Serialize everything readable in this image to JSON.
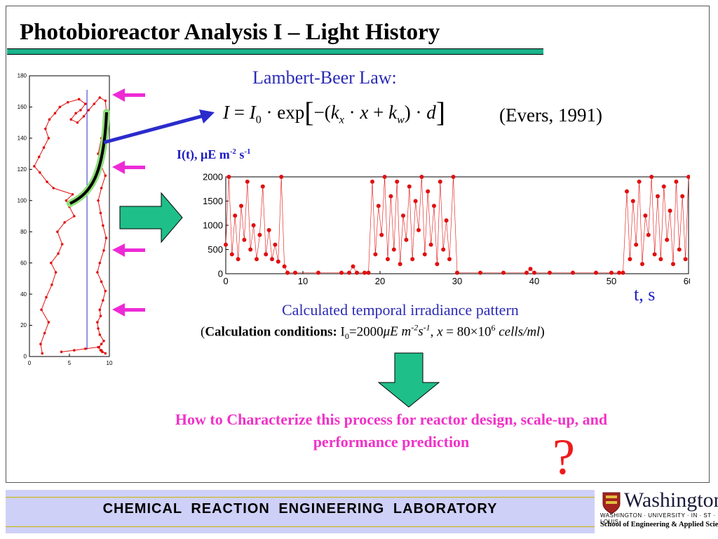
{
  "slide": {
    "title": "Photobioreactor Analysis I – Light History",
    "lambert_beer_label": "Lambert-Beer Law:",
    "citation": "(Evers, 1991)",
    "irradiance_unit_label": "I(t), μE m-2 s-1",
    "time_axis_label": "t, s",
    "caption": "Calculated temporal irradiance pattern",
    "conditions": {
      "bold_prefix": "Calculation conditions:",
      "text": "I0=2000μE m-2s-1, x = 80×106 cells/ml"
    },
    "question": "How to Characterize this process for reactor design, scale-up, and performance prediction",
    "question_mark": "?",
    "colors": {
      "title_bar": "#19b38a",
      "caption_blue": "#2b2bb5",
      "question_pink": "#f032c8",
      "qmark_red": "#ee1b1b",
      "trajectory_red": "#e01010",
      "arrow_magenta": "#ee2ad6",
      "footer_bg": "#cfd0f8"
    }
  },
  "footer": {
    "lab_name": "CHEMICAL REACTION ENGINEERING LABORATORY",
    "university": "Washington",
    "university_sub": "WASHINGTON · UNIVERSITY · IN · ST · LOUIS",
    "school": "School of Engineering & Applied Science"
  },
  "chart_data": [
    {
      "type": "line",
      "title": "",
      "xlabel": "",
      "ylabel": "",
      "xlim": [
        0,
        10
      ],
      "ylim": [
        0,
        180
      ],
      "x_ticks": [
        "0",
        "5",
        "10"
      ],
      "y_ticks": [
        "0",
        "20",
        "40",
        "60",
        "80",
        "100",
        "120",
        "140",
        "160",
        "180"
      ],
      "series": [
        {
          "x": [
            1.6,
            1.4,
            1.9,
            2.4,
            1.5,
            2.1,
            2.8,
            3.3,
            2.7,
            3.6,
            4.1,
            3.5,
            4.4,
            5.6,
            5.0,
            4.6,
            5.4,
            3.0,
            2.2,
            1.3,
            0.6,
            1.2,
            1.8,
            2.4,
            2.0,
            2.5,
            3.2,
            3.8,
            4.8,
            6.2,
            7.0,
            6.4,
            5.8,
            5.2,
            6.0,
            6.8,
            7.4,
            8.1,
            8.8,
            9.5,
            9.6,
            9.3,
            9.0,
            8.6,
            9.0,
            9.5,
            9.0,
            8.6,
            8.9,
            9.2,
            9.6,
            9.3,
            8.8,
            8.5,
            9.0,
            9.5,
            9.2,
            8.8,
            8.9,
            8.5,
            8.6,
            8.8,
            9.3,
            9.0,
            8.7,
            8.9,
            9.1,
            9.5,
            9.0,
            8.6,
            7.0,
            5.6,
            4.0
          ],
          "y": [
            2,
            8,
            15,
            22,
            30,
            38,
            46,
            54,
            60,
            66,
            72,
            80,
            86,
            90,
            96,
            100,
            104,
            108,
            112,
            118,
            122,
            128,
            134,
            140,
            146,
            152,
            156,
            160,
            163,
            165,
            162,
            158,
            156,
            152,
            150,
            154,
            158,
            162,
            166,
            164,
            158,
            150,
            140,
            130,
            122,
            116,
            108,
            100,
            92,
            84,
            76,
            68,
            60,
            54,
            48,
            42,
            36,
            30,
            26,
            22,
            18,
            14,
            10,
            8,
            6,
            4,
            3,
            2,
            4,
            6,
            5,
            4,
            3
          ]
        }
      ]
    },
    {
      "type": "line",
      "title": "",
      "xlabel": "t, s",
      "ylabel": "I(t), μE m-2 s-1",
      "xlim": [
        0,
        60
      ],
      "ylim": [
        0,
        2000
      ],
      "x_ticks": [
        "0",
        "10",
        "20",
        "30",
        "40",
        "50",
        "60"
      ],
      "y_ticks": [
        "0",
        "500",
        "1000",
        "1500",
        "2000"
      ],
      "series": [
        {
          "x": [
            0.0,
            0.4,
            0.8,
            1.2,
            1.6,
            2.0,
            2.4,
            2.8,
            3.2,
            3.6,
            4.0,
            4.4,
            4.8,
            5.2,
            5.6,
            6.0,
            6.4,
            6.8,
            7.2,
            7.6,
            8.0,
            9.0,
            12.0,
            15.0,
            16.0,
            16.5,
            17.0,
            18.0,
            18.5,
            19.0,
            19.4,
            19.8,
            20.2,
            20.6,
            21.0,
            21.4,
            21.8,
            22.2,
            22.6,
            23.0,
            23.4,
            23.8,
            24.2,
            24.6,
            25.0,
            25.4,
            25.8,
            26.2,
            26.6,
            27.0,
            27.4,
            27.8,
            28.2,
            28.6,
            29.0,
            29.5,
            30.0,
            33.0,
            36.0,
            39.0,
            39.5,
            40.0,
            42.0,
            45.0,
            48.0,
            50.0,
            51.0,
            51.5,
            52.0,
            52.4,
            52.8,
            53.2,
            53.6,
            54.0,
            54.4,
            54.8,
            55.2,
            55.6,
            56.0,
            56.4,
            56.8,
            57.2,
            57.6,
            58.0,
            58.4,
            58.8,
            59.2,
            59.6,
            60.0
          ],
          "y": [
            600,
            2000,
            400,
            1200,
            300,
            1400,
            700,
            1900,
            500,
            1000,
            300,
            800,
            1800,
            400,
            900,
            300,
            600,
            250,
            2000,
            150,
            20,
            20,
            20,
            20,
            20,
            150,
            20,
            20,
            20,
            1900,
            400,
            1400,
            800,
            2000,
            300,
            1600,
            500,
            1900,
            200,
            1200,
            700,
            1800,
            300,
            1500,
            900,
            2000,
            400,
            1700,
            600,
            1400,
            200,
            1900,
            500,
            1100,
            300,
            2000,
            20,
            20,
            20,
            20,
            100,
            20,
            20,
            20,
            20,
            20,
            20,
            20,
            1700,
            300,
            1500,
            600,
            1900,
            200,
            1200,
            800,
            2000,
            400,
            1600,
            300,
            1800,
            700,
            1300,
            200,
            1900,
            500,
            1600,
            300,
            2000
          ]
        }
      ]
    }
  ]
}
